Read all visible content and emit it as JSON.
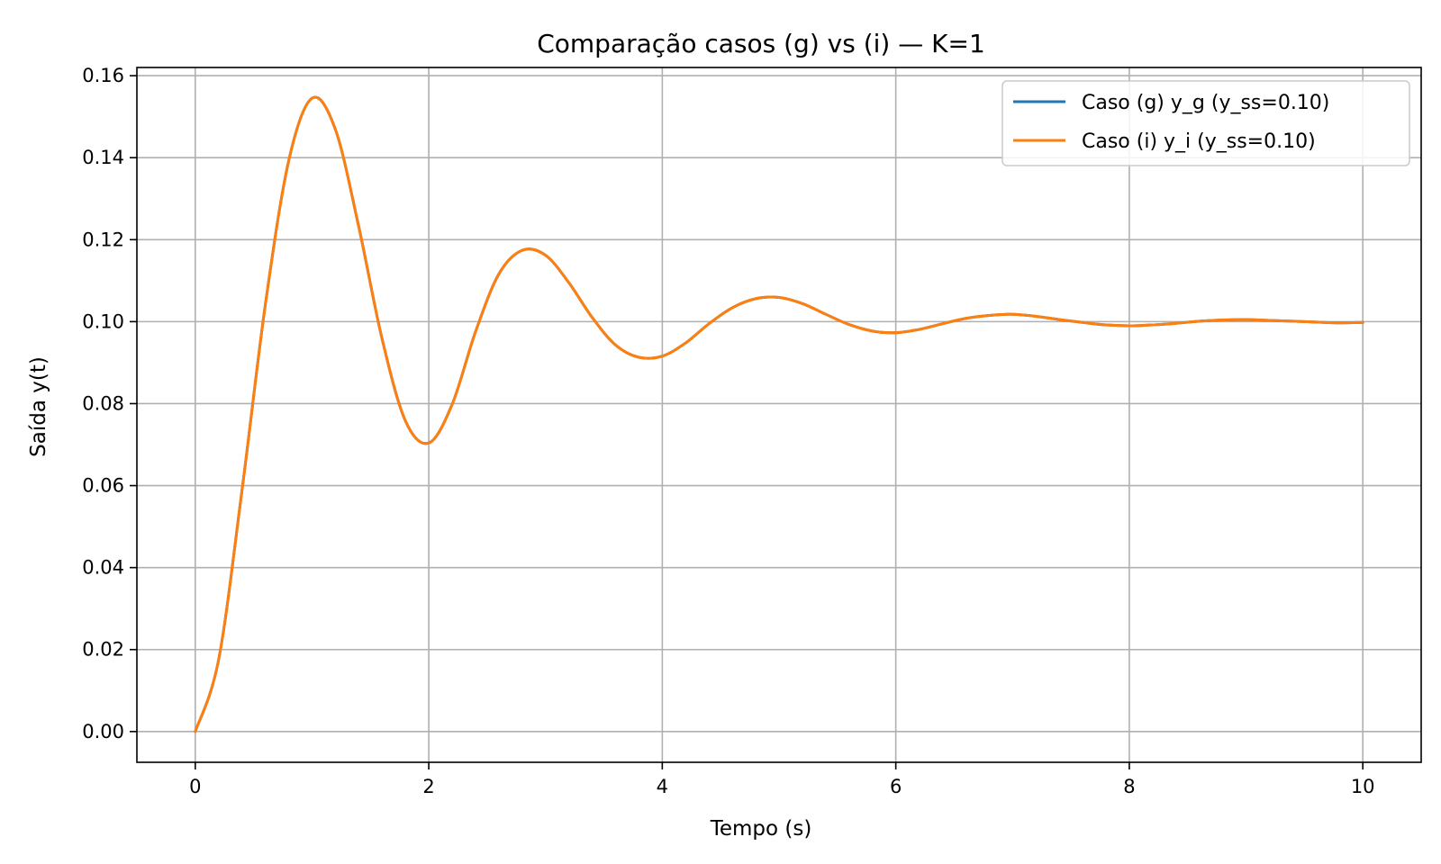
{
  "chart_data": {
    "type": "line",
    "title": "Comparação casos (g) vs (i) — K=1",
    "xlabel": "Tempo (s)",
    "ylabel": "Saída y(t)",
    "xlim": [
      -0.5,
      10.5
    ],
    "ylim": [
      -0.0075,
      0.162
    ],
    "xticks": [
      0,
      2,
      4,
      6,
      8,
      10
    ],
    "xtick_labels": [
      "0",
      "2",
      "4",
      "6",
      "8",
      "10"
    ],
    "yticks": [
      0,
      0.02,
      0.04,
      0.06,
      0.08,
      0.1,
      0.12,
      0.14,
      0.16
    ],
    "ytick_labels": [
      "0.00",
      "0.02",
      "0.04",
      "0.06",
      "0.08",
      "0.10",
      "0.12",
      "0.14",
      "0.16"
    ],
    "grid": true,
    "legend_position": "top-right",
    "x": [
      0,
      0.2,
      0.4,
      0.6,
      0.8,
      1.0,
      1.2,
      1.4,
      1.6,
      1.8,
      2.0,
      2.2,
      2.4,
      2.6,
      2.8,
      3.0,
      3.2,
      3.4,
      3.6,
      3.8,
      4.0,
      4.2,
      4.4,
      4.6,
      4.8,
      5.0,
      5.2,
      5.4,
      5.6,
      5.8,
      6.0,
      6.2,
      6.4,
      6.6,
      6.8,
      7.0,
      7.2,
      7.4,
      7.6,
      7.8,
      8.0,
      8.2,
      8.4,
      8.6,
      8.8,
      9.0,
      9.2,
      9.4,
      9.6,
      9.8,
      10.0
    ],
    "series": [
      {
        "name": "Caso (g) y_g (y_ss=0.10)",
        "color": "#1f77b4",
        "values": [
          0.0,
          0.0175,
          0.0588,
          0.1041,
          0.1392,
          0.1545,
          0.1469,
          0.1232,
          0.0958,
          0.0758,
          0.0704,
          0.0798,
          0.0975,
          0.1116,
          0.1174,
          0.1162,
          0.1095,
          0.101,
          0.0943,
          0.0913,
          0.0916,
          0.0948,
          0.0995,
          0.1034,
          0.1056,
          0.1059,
          0.1044,
          0.1018,
          0.0993,
          0.0977,
          0.0973,
          0.0981,
          0.0995,
          0.1008,
          0.1015,
          0.1018,
          0.1013,
          0.1005,
          0.0998,
          0.0992,
          0.099,
          0.0992,
          0.0996,
          0.1001,
          0.1004,
          0.1005,
          0.1003,
          0.1001,
          0.0999,
          0.0997,
          0.0998
        ]
      },
      {
        "name": "Caso (i) y_i (y_ss=0.10)",
        "color": "#ff7f0e",
        "values": [
          0.0,
          0.0175,
          0.0588,
          0.1041,
          0.1392,
          0.1545,
          0.1469,
          0.1232,
          0.0958,
          0.0758,
          0.0704,
          0.0798,
          0.0975,
          0.1116,
          0.1174,
          0.1162,
          0.1095,
          0.101,
          0.0943,
          0.0913,
          0.0916,
          0.0948,
          0.0995,
          0.1034,
          0.1056,
          0.1059,
          0.1044,
          0.1018,
          0.0993,
          0.0977,
          0.0973,
          0.0981,
          0.0995,
          0.1008,
          0.1015,
          0.1018,
          0.1013,
          0.1005,
          0.0998,
          0.0992,
          0.099,
          0.0992,
          0.0996,
          0.1001,
          0.1004,
          0.1005,
          0.1003,
          0.1001,
          0.0999,
          0.0997,
          0.0998
        ]
      }
    ]
  }
}
